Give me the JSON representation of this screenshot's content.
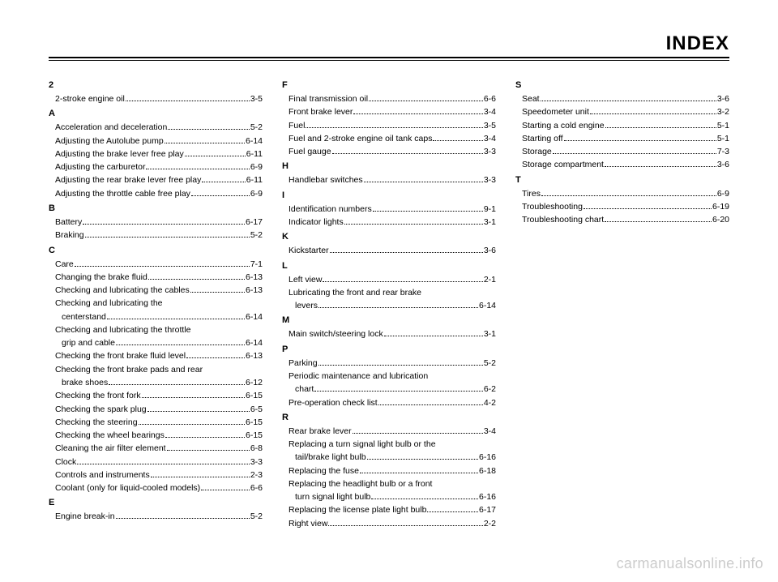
{
  "title": "INDEX",
  "watermark": "carmanualsonline.info",
  "colors": {
    "background": "#ffffff",
    "text": "#000000",
    "watermark": "#cccccc",
    "rule": "#000000"
  },
  "columns": [
    {
      "sections": [
        {
          "letter": "2",
          "entries": [
            {
              "label": "2-stroke engine oil",
              "page": "3-5"
            }
          ]
        },
        {
          "letter": "A",
          "entries": [
            {
              "label": "Acceleration and deceleration",
              "page": "5-2"
            },
            {
              "label": "Adjusting the Autolube pump",
              "page": "6-14"
            },
            {
              "label": "Adjusting the brake lever free play",
              "page": "6-11"
            },
            {
              "label": "Adjusting the carburetor",
              "page": "6-9"
            },
            {
              "label": "Adjusting the rear brake lever free play",
              "page": "6-11"
            },
            {
              "label": "Adjusting the throttle cable free play",
              "page": "6-9"
            }
          ]
        },
        {
          "letter": "B",
          "entries": [
            {
              "label": "Battery",
              "page": "6-17"
            },
            {
              "label": "Braking",
              "page": "5-2"
            }
          ]
        },
        {
          "letter": "C",
          "entries": [
            {
              "label": "Care",
              "page": "7-1"
            },
            {
              "label": "Changing the brake fluid",
              "page": "6-13"
            },
            {
              "label": "Checking and lubricating the cables",
              "page": "6-13"
            },
            {
              "label": "Checking and lubricating the",
              "wrap": true
            },
            {
              "label": "centerstand",
              "page": "6-14",
              "continuation": true
            },
            {
              "label": "Checking and lubricating the throttle",
              "wrap": true
            },
            {
              "label": "grip and cable",
              "page": "6-14",
              "continuation": true
            },
            {
              "label": "Checking the front brake fluid level",
              "page": "6-13"
            },
            {
              "label": "Checking the front brake pads and rear",
              "wrap": true
            },
            {
              "label": "brake shoes",
              "page": "6-12",
              "continuation": true
            },
            {
              "label": "Checking the front fork",
              "page": "6-15"
            },
            {
              "label": "Checking the spark plug",
              "page": "6-5"
            },
            {
              "label": "Checking the steering",
              "page": "6-15"
            },
            {
              "label": "Checking the wheel bearings",
              "page": "6-15"
            },
            {
              "label": "Cleaning the air filter element",
              "page": "6-8"
            },
            {
              "label": "Clock",
              "page": "3-3"
            },
            {
              "label": "Controls and instruments",
              "page": "2-3"
            },
            {
              "label": "Coolant (only for liquid-cooled models)",
              "page": "6-6"
            }
          ]
        },
        {
          "letter": "E",
          "entries": [
            {
              "label": "Engine break-in",
              "page": "5-2"
            }
          ]
        }
      ]
    },
    {
      "sections": [
        {
          "letter": "F",
          "entries": [
            {
              "label": "Final transmission oil",
              "page": "6-6"
            },
            {
              "label": "Front brake lever",
              "page": "3-4"
            },
            {
              "label": "Fuel",
              "page": "3-5"
            },
            {
              "label": "Fuel and 2-stroke engine oil tank caps",
              "page": "3-4"
            },
            {
              "label": "Fuel gauge",
              "page": "3-3"
            }
          ]
        },
        {
          "letter": "H",
          "entries": [
            {
              "label": "Handlebar switches",
              "page": "3-3"
            }
          ]
        },
        {
          "letter": "I",
          "entries": [
            {
              "label": "Identification numbers",
              "page": "9-1"
            },
            {
              "label": "Indicator lights",
              "page": "3-1"
            }
          ]
        },
        {
          "letter": "K",
          "entries": [
            {
              "label": "Kickstarter",
              "page": "3-6"
            }
          ]
        },
        {
          "letter": "L",
          "entries": [
            {
              "label": "Left view",
              "page": "2-1"
            },
            {
              "label": "Lubricating the front and rear brake",
              "wrap": true
            },
            {
              "label": "levers",
              "page": "6-14",
              "continuation": true
            }
          ]
        },
        {
          "letter": "M",
          "entries": [
            {
              "label": "Main switch/steering lock",
              "page": "3-1"
            }
          ]
        },
        {
          "letter": "P",
          "entries": [
            {
              "label": "Parking",
              "page": "5-2"
            },
            {
              "label": "Periodic maintenance and lubrication",
              "wrap": true
            },
            {
              "label": "chart",
              "page": "6-2",
              "continuation": true
            },
            {
              "label": "Pre-operation check list",
              "page": "4-2"
            }
          ]
        },
        {
          "letter": "R",
          "entries": [
            {
              "label": "Rear brake lever",
              "page": "3-4"
            },
            {
              "label": "Replacing a turn signal light bulb or the",
              "wrap": true
            },
            {
              "label": "tail/brake light bulb",
              "page": "6-16",
              "continuation": true
            },
            {
              "label": "Replacing the fuse",
              "page": "6-18"
            },
            {
              "label": "Replacing the headlight bulb or a front",
              "wrap": true
            },
            {
              "label": "turn signal light bulb",
              "page": "6-16",
              "continuation": true
            },
            {
              "label": "Replacing the license plate light bulb",
              "page": "6-17"
            },
            {
              "label": "Right view",
              "page": "2-2"
            }
          ]
        }
      ]
    },
    {
      "sections": [
        {
          "letter": "S",
          "entries": [
            {
              "label": "Seat",
              "page": "3-6"
            },
            {
              "label": "Speedometer unit",
              "page": "3-2"
            },
            {
              "label": "Starting a cold engine",
              "page": "5-1"
            },
            {
              "label": "Starting off",
              "page": "5-1"
            },
            {
              "label": "Storage",
              "page": "7-3"
            },
            {
              "label": "Storage compartment",
              "page": "3-6"
            }
          ]
        },
        {
          "letter": "T",
          "entries": [
            {
              "label": "Tires",
              "page": "6-9"
            },
            {
              "label": "Troubleshooting",
              "page": "6-19"
            },
            {
              "label": "Troubleshooting chart",
              "page": "6-20"
            }
          ]
        }
      ]
    }
  ]
}
